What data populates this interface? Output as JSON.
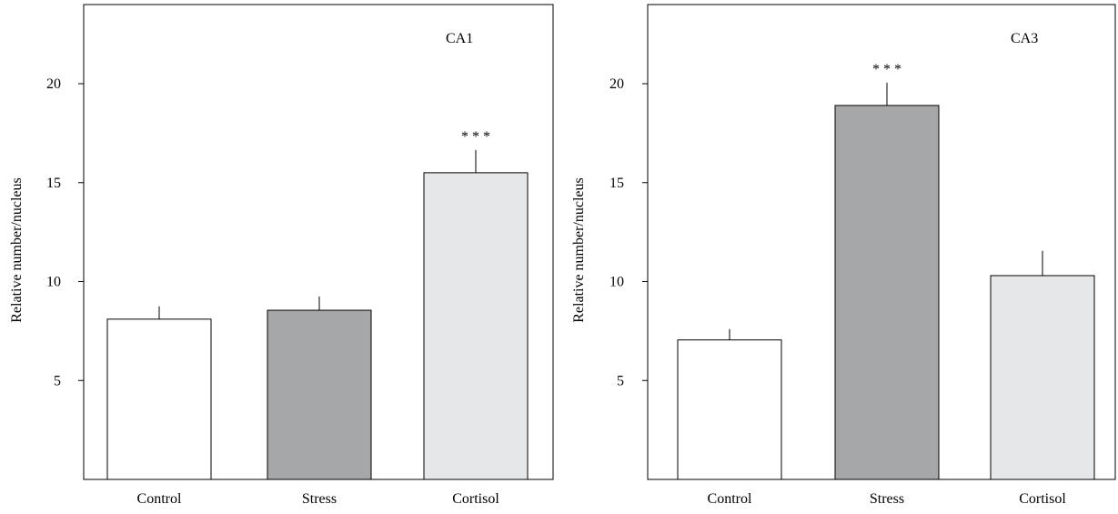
{
  "chart_data": [
    {
      "type": "bar",
      "title": "CA1",
      "ylabel": "Relative number/nucleus",
      "xlabel": "",
      "categories": [
        "Control",
        "Stress",
        "Cortisol"
      ],
      "values": [
        8.1,
        8.55,
        15.5
      ],
      "errors": [
        0.65,
        0.7,
        1.15
      ],
      "significance": [
        "",
        "",
        "* * *"
      ],
      "ylim": [
        0,
        24
      ],
      "yticks": [
        5,
        10,
        15,
        20
      ],
      "bar_colors": [
        "#ffffff",
        "#a6a7a9",
        "#e6e7e8"
      ],
      "grid": false,
      "legend": "none"
    },
    {
      "type": "bar",
      "title": "CA3",
      "ylabel": "Relative number/nucleus",
      "xlabel": "",
      "categories": [
        "Control",
        "Stress",
        "Cortisol"
      ],
      "values": [
        7.05,
        18.9,
        10.3
      ],
      "errors": [
        0.55,
        1.15,
        1.25
      ],
      "significance": [
        "",
        "* * *",
        ""
      ],
      "ylim": [
        0,
        24
      ],
      "yticks": [
        5,
        10,
        15,
        20
      ],
      "bar_colors": [
        "#ffffff",
        "#a6a7a9",
        "#e6e7e8"
      ],
      "grid": false,
      "legend": "none"
    }
  ]
}
